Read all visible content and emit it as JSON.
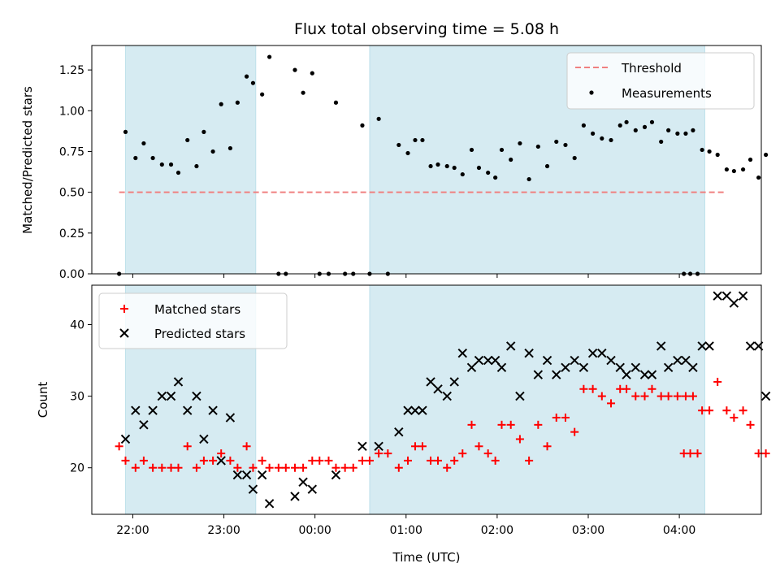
{
  "chart_data": [
    {
      "type": "scatter",
      "title": "Flux total observing time = 5.08 h",
      "xlabel": "",
      "ylabel": "Matched/Predicted stars",
      "ylim": [
        0,
        1.4
      ],
      "yticks": [
        "0.00",
        "0.25",
        "0.50",
        "0.75",
        "1.00",
        "1.25"
      ],
      "x_unit": "hours_since_midnight",
      "xlim": [
        -2.45,
        4.9
      ],
      "shaded_intervals": [
        [
          -2.08,
          -0.65
        ],
        [
          0.6,
          4.28
        ]
      ],
      "threshold": {
        "name": "Threshold",
        "value": 0.5,
        "x_start": -2.15,
        "x_end": 4.52,
        "color": "#f08080"
      },
      "series": [
        {
          "name": "Measurements",
          "color": "#000000",
          "points": [
            [
              -2.15,
              0.0
            ],
            [
              -2.08,
              0.87
            ],
            [
              -1.97,
              0.71
            ],
            [
              -1.88,
              0.8
            ],
            [
              -1.78,
              0.71
            ],
            [
              -1.68,
              0.67
            ],
            [
              -1.58,
              0.67
            ],
            [
              -1.5,
              0.62
            ],
            [
              -1.4,
              0.82
            ],
            [
              -1.3,
              0.66
            ],
            [
              -1.22,
              0.87
            ],
            [
              -1.12,
              0.75
            ],
            [
              -1.03,
              1.04
            ],
            [
              -0.93,
              0.77
            ],
            [
              -0.85,
              1.05
            ],
            [
              -0.75,
              1.21
            ],
            [
              -0.68,
              1.17
            ],
            [
              -0.58,
              1.1
            ],
            [
              -0.5,
              1.33
            ],
            [
              -0.4,
              0.0
            ],
            [
              -0.32,
              0.0
            ],
            [
              -0.22,
              1.25
            ],
            [
              -0.13,
              1.11
            ],
            [
              -0.03,
              1.23
            ],
            [
              0.05,
              0.0
            ],
            [
              0.15,
              0.0
            ],
            [
              0.23,
              1.05
            ],
            [
              0.33,
              0.0
            ],
            [
              0.42,
              0.0
            ],
            [
              0.52,
              0.91
            ],
            [
              0.6,
              0.0
            ],
            [
              0.7,
              0.95
            ],
            [
              0.8,
              0.0
            ],
            [
              0.92,
              0.79
            ],
            [
              1.02,
              0.74
            ],
            [
              1.1,
              0.82
            ],
            [
              1.18,
              0.82
            ],
            [
              1.27,
              0.66
            ],
            [
              1.35,
              0.67
            ],
            [
              1.45,
              0.66
            ],
            [
              1.53,
              0.65
            ],
            [
              1.62,
              0.61
            ],
            [
              1.72,
              0.76
            ],
            [
              1.8,
              0.65
            ],
            [
              1.9,
              0.62
            ],
            [
              1.98,
              0.59
            ],
            [
              2.05,
              0.76
            ],
            [
              2.15,
              0.7
            ],
            [
              2.25,
              0.8
            ],
            [
              2.35,
              0.58
            ],
            [
              2.45,
              0.78
            ],
            [
              2.55,
              0.66
            ],
            [
              2.65,
              0.81
            ],
            [
              2.75,
              0.79
            ],
            [
              2.85,
              0.71
            ],
            [
              2.95,
              0.91
            ],
            [
              3.05,
              0.86
            ],
            [
              3.15,
              0.83
            ],
            [
              3.25,
              0.82
            ],
            [
              3.35,
              0.91
            ],
            [
              3.42,
              0.93
            ],
            [
              3.52,
              0.88
            ],
            [
              3.62,
              0.9
            ],
            [
              3.7,
              0.93
            ],
            [
              3.8,
              0.81
            ],
            [
              3.88,
              0.88
            ],
            [
              3.98,
              0.86
            ],
            [
              4.07,
              0.86
            ],
            [
              4.15,
              0.88
            ],
            [
              4.25,
              0.76
            ],
            [
              4.33,
              0.75
            ],
            [
              4.42,
              0.73
            ],
            [
              4.52,
              0.64
            ],
            [
              4.6,
              0.63
            ],
            [
              4.7,
              0.64
            ],
            [
              4.78,
              0.7
            ],
            [
              4.87,
              0.59
            ],
            [
              4.95,
              0.73
            ],
            [
              4.05,
              0.0
            ],
            [
              4.12,
              0.0
            ],
            [
              4.2,
              0.0
            ]
          ]
        }
      ],
      "legend": {
        "placement": "top-right",
        "entries": [
          "Threshold",
          "Measurements"
        ]
      }
    },
    {
      "type": "scatter",
      "xlabel": "Time (UTC)",
      "ylabel": "Count",
      "ylim": [
        13.5,
        45.5
      ],
      "yticks": [
        "20",
        "30",
        "40"
      ],
      "xticks": [
        "22:00",
        "23:00",
        "00:00",
        "01:00",
        "02:00",
        "03:00",
        "04:00"
      ],
      "x_unit": "hours_since_midnight",
      "xlim": [
        -2.45,
        4.9
      ],
      "shaded_intervals": [
        [
          -2.08,
          -0.65
        ],
        [
          0.6,
          4.28
        ]
      ],
      "series": [
        {
          "name": "Matched stars",
          "color": "#ff0000",
          "points": [
            [
              -2.15,
              23
            ],
            [
              -2.08,
              21
            ],
            [
              -1.97,
              20
            ],
            [
              -1.88,
              21
            ],
            [
              -1.78,
              20
            ],
            [
              -1.68,
              20
            ],
            [
              -1.58,
              20
            ],
            [
              -1.5,
              20
            ],
            [
              -1.4,
              23
            ],
            [
              -1.3,
              20
            ],
            [
              -1.22,
              21
            ],
            [
              -1.12,
              21
            ],
            [
              -1.03,
              22
            ],
            [
              -0.93,
              21
            ],
            [
              -0.85,
              20
            ],
            [
              -0.75,
              23
            ],
            [
              -0.68,
              20
            ],
            [
              -0.58,
              21
            ],
            [
              -0.5,
              20
            ],
            [
              -0.4,
              20
            ],
            [
              -0.32,
              20
            ],
            [
              -0.22,
              20
            ],
            [
              -0.13,
              20
            ],
            [
              -0.03,
              21
            ],
            [
              0.05,
              21
            ],
            [
              0.15,
              21
            ],
            [
              0.23,
              20
            ],
            [
              0.33,
              20
            ],
            [
              0.42,
              20
            ],
            [
              0.52,
              21
            ],
            [
              0.6,
              21
            ],
            [
              0.7,
              22
            ],
            [
              0.8,
              22
            ],
            [
              0.92,
              20
            ],
            [
              1.02,
              21
            ],
            [
              1.1,
              23
            ],
            [
              1.18,
              23
            ],
            [
              1.27,
              21
            ],
            [
              1.35,
              21
            ],
            [
              1.45,
              20
            ],
            [
              1.53,
              21
            ],
            [
              1.62,
              22
            ],
            [
              1.72,
              26
            ],
            [
              1.8,
              23
            ],
            [
              1.9,
              22
            ],
            [
              1.98,
              21
            ],
            [
              2.05,
              26
            ],
            [
              2.15,
              26
            ],
            [
              2.25,
              24
            ],
            [
              2.35,
              21
            ],
            [
              2.45,
              26
            ],
            [
              2.55,
              23
            ],
            [
              2.65,
              27
            ],
            [
              2.75,
              27
            ],
            [
              2.85,
              25
            ],
            [
              2.95,
              31
            ],
            [
              3.05,
              31
            ],
            [
              3.15,
              30
            ],
            [
              3.25,
              29
            ],
            [
              3.35,
              31
            ],
            [
              3.42,
              31
            ],
            [
              3.52,
              30
            ],
            [
              3.62,
              30
            ],
            [
              3.7,
              31
            ],
            [
              3.8,
              30
            ],
            [
              3.88,
              30
            ],
            [
              3.98,
              30
            ],
            [
              4.07,
              30
            ],
            [
              4.15,
              30
            ],
            [
              4.25,
              28
            ],
            [
              4.33,
              28
            ],
            [
              4.42,
              32
            ],
            [
              4.52,
              28
            ],
            [
              4.6,
              27
            ],
            [
              4.7,
              28
            ],
            [
              4.78,
              26
            ],
            [
              4.87,
              22
            ],
            [
              4.95,
              22
            ],
            [
              4.05,
              22
            ],
            [
              4.12,
              22
            ],
            [
              4.2,
              22
            ]
          ]
        },
        {
          "name": "Predicted stars",
          "color": "#000000",
          "points": [
            [
              -2.08,
              24
            ],
            [
              -1.97,
              28
            ],
            [
              -1.88,
              26
            ],
            [
              -1.78,
              28
            ],
            [
              -1.68,
              30
            ],
            [
              -1.58,
              30
            ],
            [
              -1.5,
              32
            ],
            [
              -1.4,
              28
            ],
            [
              -1.3,
              30
            ],
            [
              -1.22,
              24
            ],
            [
              -1.12,
              28
            ],
            [
              -1.03,
              21
            ],
            [
              -0.93,
              27
            ],
            [
              -0.85,
              19
            ],
            [
              -0.75,
              19
            ],
            [
              -0.68,
              17
            ],
            [
              -0.58,
              19
            ],
            [
              -0.5,
              15
            ],
            [
              -0.22,
              16
            ],
            [
              -0.13,
              18
            ],
            [
              -0.03,
              17
            ],
            [
              0.23,
              19
            ],
            [
              0.52,
              23
            ],
            [
              0.7,
              23
            ],
            [
              0.92,
              25
            ],
            [
              1.02,
              28
            ],
            [
              1.1,
              28
            ],
            [
              1.18,
              28
            ],
            [
              1.27,
              32
            ],
            [
              1.35,
              31
            ],
            [
              1.45,
              30
            ],
            [
              1.53,
              32
            ],
            [
              1.62,
              36
            ],
            [
              1.72,
              34
            ],
            [
              1.8,
              35
            ],
            [
              1.9,
              35
            ],
            [
              1.98,
              35
            ],
            [
              2.05,
              34
            ],
            [
              2.15,
              37
            ],
            [
              2.25,
              30
            ],
            [
              2.35,
              36
            ],
            [
              2.45,
              33
            ],
            [
              2.55,
              35
            ],
            [
              2.65,
              33
            ],
            [
              2.75,
              34
            ],
            [
              2.85,
              35
            ],
            [
              2.95,
              34
            ],
            [
              3.05,
              36
            ],
            [
              3.15,
              36
            ],
            [
              3.25,
              35
            ],
            [
              3.35,
              34
            ],
            [
              3.42,
              33
            ],
            [
              3.52,
              34
            ],
            [
              3.62,
              33
            ],
            [
              3.7,
              33
            ],
            [
              3.8,
              37
            ],
            [
              3.88,
              34
            ],
            [
              3.98,
              35
            ],
            [
              4.07,
              35
            ],
            [
              4.15,
              34
            ],
            [
              4.25,
              37
            ],
            [
              4.33,
              37
            ],
            [
              4.42,
              44
            ],
            [
              4.52,
              44
            ],
            [
              4.6,
              43
            ],
            [
              4.7,
              44
            ],
            [
              4.78,
              37
            ],
            [
              4.87,
              37
            ],
            [
              4.95,
              30
            ]
          ]
        }
      ],
      "legend": {
        "placement": "top-left",
        "entries": [
          "Matched stars",
          "Predicted stars"
        ]
      }
    }
  ]
}
